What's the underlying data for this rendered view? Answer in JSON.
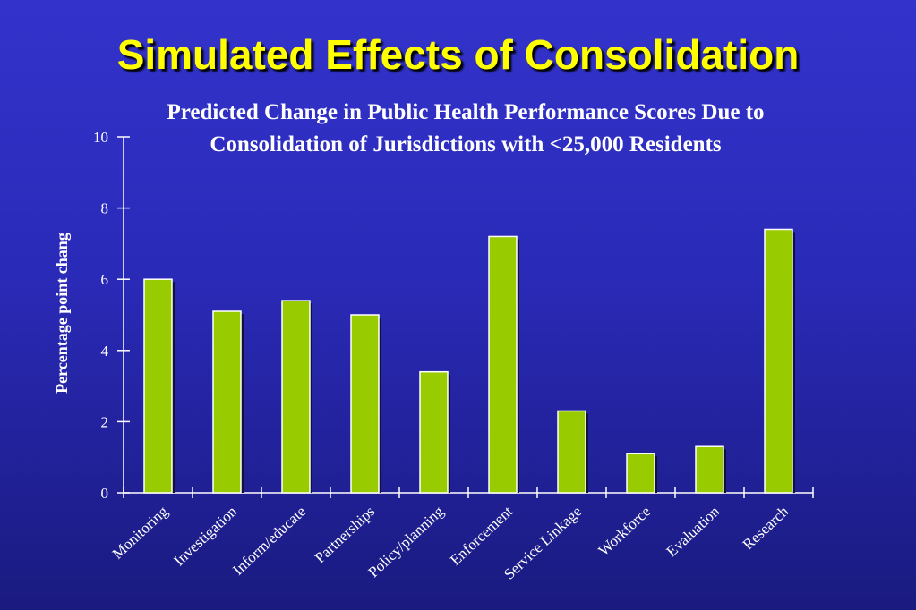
{
  "slide": {
    "title": "Simulated Effects of Consolidation"
  },
  "colors": {
    "background": "#3333cc",
    "title": "#ffff00",
    "bar": "#99cc00",
    "text": "#ffffff"
  },
  "chart_data": {
    "type": "bar",
    "title_lines": [
      "Predicted Change in Public Health Performance Scores Due to",
      "Consolidation of Jurisdictions with <25,000 Residents"
    ],
    "xlabel": "",
    "ylabel": "Percentage point chang",
    "categories": [
      "Monitoring",
      "Investigation",
      "Inform/educate",
      "Partnerships",
      "Policy/planning",
      "Enforcement",
      "Service Linkage",
      "Workforce",
      "Evaluation",
      "Research"
    ],
    "values": [
      6.0,
      5.1,
      5.4,
      5.0,
      3.4,
      7.2,
      2.3,
      1.1,
      1.3,
      7.4
    ],
    "ylim": [
      0,
      10
    ],
    "yticks": [
      0,
      2,
      4,
      6,
      8,
      10
    ],
    "grid": false,
    "legend": "none"
  }
}
